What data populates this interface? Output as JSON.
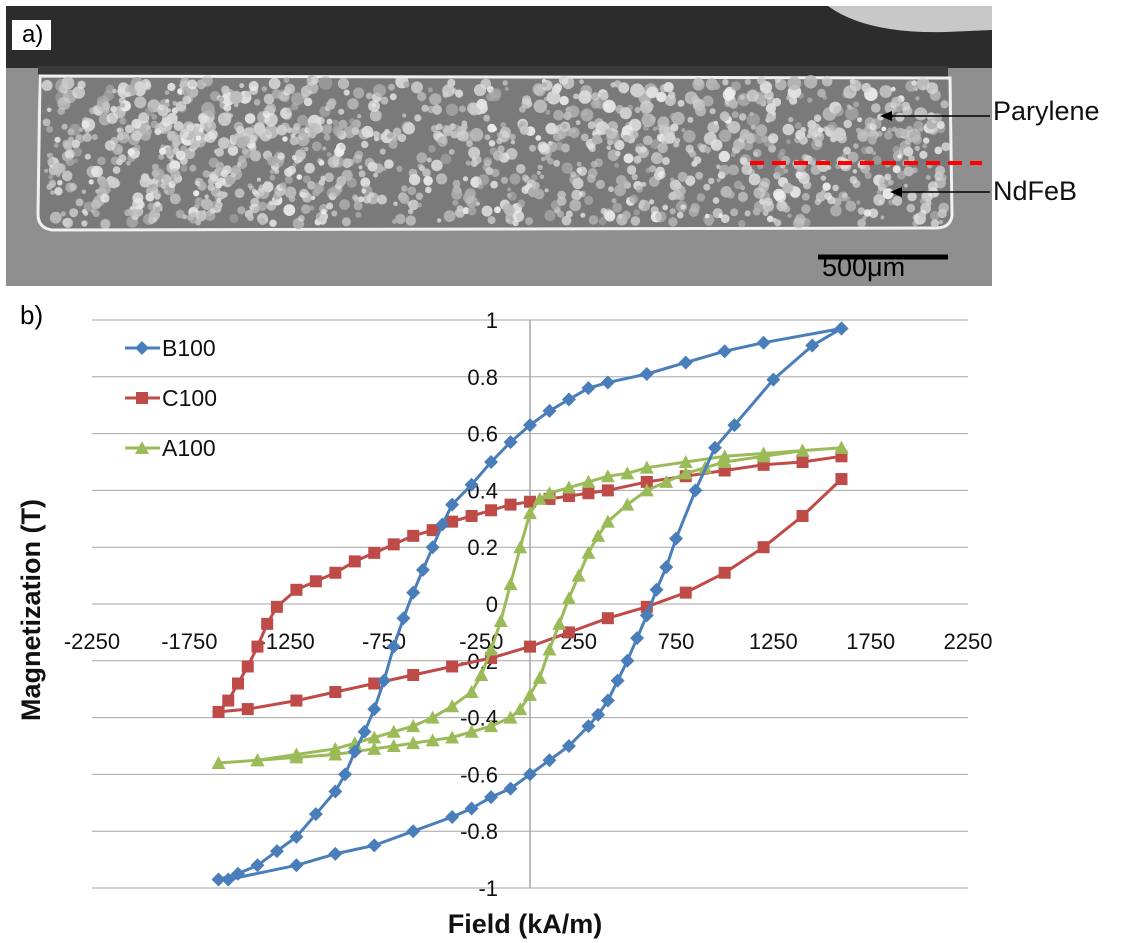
{
  "panel_a": {
    "label": "a)",
    "annotations": [
      "Parylene",
      "NdFeB"
    ],
    "scale_bar": "500μm",
    "colors": {
      "background": "#8f8f8f",
      "parylene_layer": "#333333",
      "particle": "#d6d6d6",
      "boundary_line": "#ff0000"
    }
  },
  "panel_b": {
    "label": "b)"
  },
  "chart_data": {
    "type": "line",
    "xlabel": "Field (kA/m)",
    "ylabel": "Magnetization (T)",
    "xlim": [
      -2250,
      2250
    ],
    "ylim": [
      -1,
      1
    ],
    "xticks": [
      -2250,
      -1750,
      -1250,
      -750,
      -250,
      250,
      750,
      1250,
      1750,
      2250
    ],
    "xtick_labels": [
      "-2250",
      "-1750",
      "-1250",
      "-750",
      "-250",
      "250",
      "750",
      "1250",
      "1750",
      "2250"
    ],
    "yticks": [
      1,
      0.8,
      0.6,
      0.4,
      0.2,
      0,
      -0.2,
      -0.4,
      -0.6,
      -0.8,
      -1
    ],
    "ytick_labels": [
      "1",
      "0.8",
      "0.6",
      "0.4",
      "0.2",
      "0",
      "-0.2",
      "-0.4",
      "-0.6",
      "-0.8",
      "-1"
    ],
    "grid": "horizontal",
    "legend_position": "top-left",
    "series": [
      {
        "name": "B100",
        "color": "#4a7ebb",
        "marker": "diamond",
        "points": [
          [
            1600,
            0.97
          ],
          [
            1450,
            0.91
          ],
          [
            1250,
            0.79
          ],
          [
            1050,
            0.63
          ],
          [
            950,
            0.55
          ],
          [
            850,
            0.4
          ],
          [
            750,
            0.23
          ],
          [
            700,
            0.13
          ],
          [
            650,
            0.05
          ],
          [
            600,
            -0.04
          ],
          [
            550,
            -0.12
          ],
          [
            500,
            -0.2
          ],
          [
            450,
            -0.27
          ],
          [
            400,
            -0.34
          ],
          [
            350,
            -0.39
          ],
          [
            300,
            -0.43
          ],
          [
            200,
            -0.5
          ],
          [
            100,
            -0.55
          ],
          [
            0,
            -0.6
          ],
          [
            -100,
            -0.65
          ],
          [
            -200,
            -0.68
          ],
          [
            -300,
            -0.72
          ],
          [
            -400,
            -0.75
          ],
          [
            -600,
            -0.8
          ],
          [
            -800,
            -0.85
          ],
          [
            -1000,
            -0.88
          ],
          [
            -1200,
            -0.92
          ],
          [
            -1550,
            -0.97
          ],
          [
            -1600,
            -0.97
          ],
          [
            -1500,
            -0.95
          ],
          [
            -1400,
            -0.92
          ],
          [
            -1300,
            -0.87
          ],
          [
            -1200,
            -0.82
          ],
          [
            -1100,
            -0.74
          ],
          [
            -1000,
            -0.66
          ],
          [
            -950,
            -0.6
          ],
          [
            -900,
            -0.52
          ],
          [
            -850,
            -0.45
          ],
          [
            -800,
            -0.37
          ],
          [
            -750,
            -0.27
          ],
          [
            -700,
            -0.15
          ],
          [
            -650,
            -0.05
          ],
          [
            -600,
            0.04
          ],
          [
            -550,
            0.12
          ],
          [
            -500,
            0.2
          ],
          [
            -450,
            0.28
          ],
          [
            -400,
            0.35
          ],
          [
            -300,
            0.42
          ],
          [
            -200,
            0.5
          ],
          [
            -100,
            0.57
          ],
          [
            0,
            0.63
          ],
          [
            100,
            0.68
          ],
          [
            200,
            0.72
          ],
          [
            300,
            0.76
          ],
          [
            400,
            0.78
          ],
          [
            600,
            0.81
          ],
          [
            800,
            0.85
          ],
          [
            1000,
            0.89
          ],
          [
            1200,
            0.92
          ],
          [
            1600,
            0.97
          ]
        ]
      },
      {
        "name": "C100",
        "color": "#be4b48",
        "marker": "square",
        "points": [
          [
            1600,
            0.44
          ],
          [
            1400,
            0.31
          ],
          [
            1200,
            0.2
          ],
          [
            1000,
            0.11
          ],
          [
            800,
            0.04
          ],
          [
            600,
            -0.01
          ],
          [
            400,
            -0.05
          ],
          [
            200,
            -0.1
          ],
          [
            0,
            -0.15
          ],
          [
            -200,
            -0.19
          ],
          [
            -400,
            -0.22
          ],
          [
            -600,
            -0.25
          ],
          [
            -800,
            -0.28
          ],
          [
            -1000,
            -0.31
          ],
          [
            -1200,
            -0.34
          ],
          [
            -1450,
            -0.37
          ],
          [
            -1600,
            -0.38
          ],
          [
            -1550,
            -0.34
          ],
          [
            -1500,
            -0.28
          ],
          [
            -1450,
            -0.22
          ],
          [
            -1400,
            -0.15
          ],
          [
            -1350,
            -0.07
          ],
          [
            -1300,
            -0.01
          ],
          [
            -1200,
            0.05
          ],
          [
            -1100,
            0.08
          ],
          [
            -1000,
            0.11
          ],
          [
            -900,
            0.15
          ],
          [
            -800,
            0.18
          ],
          [
            -700,
            0.21
          ],
          [
            -600,
            0.24
          ],
          [
            -500,
            0.26
          ],
          [
            -400,
            0.29
          ],
          [
            -300,
            0.31
          ],
          [
            -200,
            0.33
          ],
          [
            -100,
            0.35
          ],
          [
            0,
            0.36
          ],
          [
            100,
            0.37
          ],
          [
            200,
            0.38
          ],
          [
            300,
            0.39
          ],
          [
            400,
            0.4
          ],
          [
            600,
            0.43
          ],
          [
            800,
            0.45
          ],
          [
            1000,
            0.47
          ],
          [
            1200,
            0.49
          ],
          [
            1400,
            0.5
          ],
          [
            1600,
            0.52
          ]
        ]
      },
      {
        "name": "A100",
        "color": "#9bbb59",
        "marker": "triangle",
        "points": [
          [
            1600,
            0.55
          ],
          [
            1400,
            0.54
          ],
          [
            1200,
            0.52
          ],
          [
            1000,
            0.5
          ],
          [
            900,
            0.48
          ],
          [
            800,
            0.46
          ],
          [
            700,
            0.43
          ],
          [
            600,
            0.4
          ],
          [
            500,
            0.35
          ],
          [
            400,
            0.29
          ],
          [
            350,
            0.24
          ],
          [
            300,
            0.18
          ],
          [
            250,
            0.1
          ],
          [
            200,
            0.02
          ],
          [
            150,
            -0.07
          ],
          [
            100,
            -0.16
          ],
          [
            50,
            -0.26
          ],
          [
            0,
            -0.32
          ],
          [
            -50,
            -0.37
          ],
          [
            -100,
            -0.4
          ],
          [
            -200,
            -0.43
          ],
          [
            -300,
            -0.45
          ],
          [
            -400,
            -0.47
          ],
          [
            -500,
            -0.48
          ],
          [
            -600,
            -0.49
          ],
          [
            -700,
            -0.5
          ],
          [
            -800,
            -0.51
          ],
          [
            -1000,
            -0.53
          ],
          [
            -1200,
            -0.54
          ],
          [
            -1400,
            -0.55
          ],
          [
            -1600,
            -0.56
          ],
          [
            -1400,
            -0.55
          ],
          [
            -1200,
            -0.53
          ],
          [
            -1000,
            -0.51
          ],
          [
            -900,
            -0.49
          ],
          [
            -800,
            -0.47
          ],
          [
            -700,
            -0.45
          ],
          [
            -600,
            -0.43
          ],
          [
            -500,
            -0.4
          ],
          [
            -400,
            -0.36
          ],
          [
            -300,
            -0.31
          ],
          [
            -250,
            -0.25
          ],
          [
            -200,
            -0.16
          ],
          [
            -150,
            -0.06
          ],
          [
            -100,
            0.07
          ],
          [
            -50,
            0.2
          ],
          [
            0,
            0.32
          ],
          [
            50,
            0.37
          ],
          [
            100,
            0.39
          ],
          [
            200,
            0.41
          ],
          [
            300,
            0.43
          ],
          [
            400,
            0.45
          ],
          [
            500,
            0.46
          ],
          [
            600,
            0.48
          ],
          [
            800,
            0.5
          ],
          [
            1000,
            0.52
          ],
          [
            1200,
            0.53
          ],
          [
            1400,
            0.54
          ],
          [
            1600,
            0.55
          ]
        ]
      }
    ]
  }
}
